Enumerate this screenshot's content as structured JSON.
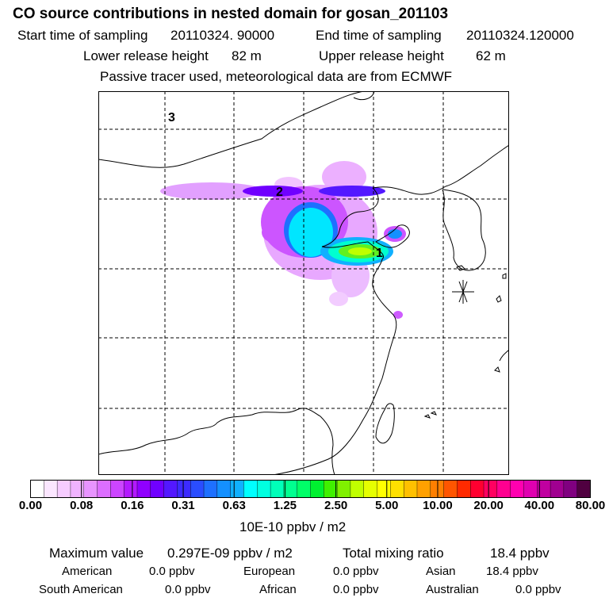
{
  "header": {
    "title": "CO  source contributions in nested domain for gosan_201103",
    "start_label": "Start time of sampling",
    "start_value": "20110324. 90000",
    "end_label": "End time of sampling",
    "end_value": "20110324.120000",
    "lower_label": "Lower release height",
    "lower_value": "82 m",
    "upper_label": "Upper release height",
    "upper_value": "62 m",
    "note": "Passive tracer used, meteorological data are from ECMWF"
  },
  "map": {
    "region_labels": [
      "1",
      "2",
      "3"
    ],
    "receptor_marker": "asterisk-receptor-icon"
  },
  "colorbar": {
    "ticks": [
      "0.00",
      "0.08",
      "0.16",
      "0.31",
      "0.63",
      "1.25",
      "2.50",
      "5.00",
      "10.00",
      "20.00",
      "40.00",
      "80.00"
    ],
    "colors": [
      "#ffffff",
      "#fbe6ff",
      "#f6ccff",
      "#f0b3ff",
      "#e894ff",
      "#dc6eff",
      "#cc45ff",
      "#b31aff",
      "#9000ff",
      "#7000ff",
      "#5318ff",
      "#3c2bff",
      "#2a4dff",
      "#1e70ff",
      "#1490ff",
      "#10b0ff",
      "#00ffff",
      "#00ffe0",
      "#00ffb9",
      "#00ff90",
      "#00ff68",
      "#00f030",
      "#40f000",
      "#80f000",
      "#c0ff00",
      "#e6ff00",
      "#ffff00",
      "#ffe000",
      "#ffc000",
      "#ffa000",
      "#ff7f00",
      "#ff5500",
      "#ff2a00",
      "#ff0030",
      "#ff0060",
      "#ff0090",
      "#ff00b0",
      "#e000b0",
      "#c000a0",
      "#a00090",
      "#800080",
      "#500040"
    ],
    "unit": "10E-10 ppbv / m2"
  },
  "footer": {
    "max_label": "Maximum value",
    "max_value": "0.297E-09 ppbv / m2",
    "total_label": "Total mixing ratio",
    "total_value": "18.4 ppbv",
    "american_label": "American",
    "american_value": "0.0 ppbv",
    "european_label": "European",
    "european_value": "0.0 ppbv",
    "asian_label": "Asian",
    "asian_value": "18.4 ppbv",
    "southamerican_label": "South American",
    "southamerican_value": "0.0 ppbv",
    "african_label": "African",
    "african_value": "0.0 ppbv",
    "australian_label": "Australian",
    "australian_value": "0.0 ppbv"
  }
}
